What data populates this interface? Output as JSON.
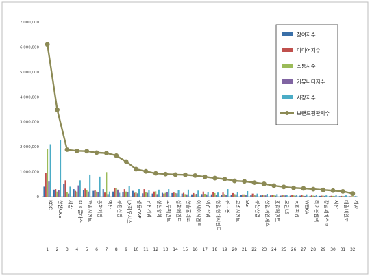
{
  "chart_data": {
    "type": "bar",
    "ylim": [
      0,
      7000000
    ],
    "yticks": [
      "0",
      "1,000,000",
      "2,000,000",
      "3,000,000",
      "4,000,000",
      "5,000,000",
      "6,000,000",
      "7,000,000"
    ],
    "grid": false,
    "legend_position": "right",
    "categories": [
      "KCC",
      "한샘CKE",
      "세방",
      "KCC글라스",
      "한일시멘트",
      "동화기업",
      "벽산",
      "부광산업",
      "LX하우시스",
      "쌍용C&E",
      "유진기업",
      "성신양회",
      "노루페인트",
      "삼화페인트",
      "한솔홈데코",
      "아세아시멘트",
      "이건산업",
      "한일현대시멘트",
      "유니온",
      "고려시멘트",
      "SG",
      "부산산업",
      "삼일씨엔에스",
      "조광페인트",
      "모던LS",
      "동화파워",
      "WEKA",
      "라이온켐텍",
      "강남제비스코",
      "서산",
      "대림비앤코",
      "계양"
    ],
    "index_labels": [
      "1",
      "2",
      "3",
      "4",
      "5",
      "6",
      "7",
      "8",
      "9",
      "10",
      "11",
      "12",
      "13",
      "14",
      "15",
      "16",
      "17",
      "18",
      "19",
      "20",
      "21",
      "22",
      "23",
      "24",
      "25",
      "26",
      "27",
      "28",
      "29",
      "30",
      "31",
      "32"
    ],
    "series": [
      {
        "name": "참여지수",
        "kind": "bar",
        "color": "#3a6fa8",
        "values": [
          400000,
          280000,
          520000,
          300000,
          260000,
          230000,
          300000,
          200000,
          170000,
          230000,
          130000,
          120000,
          150000,
          140000,
          120000,
          90000,
          100000,
          90000,
          80000,
          70000,
          60000,
          60000,
          50000,
          50000,
          40000,
          40000,
          40000,
          30000,
          30000,
          25000,
          20000,
          15000
        ]
      },
      {
        "name": "미디어지수",
        "kind": "bar",
        "color": "#c0504d",
        "values": [
          950000,
          300000,
          650000,
          230000,
          320000,
          250000,
          160000,
          330000,
          300000,
          150000,
          300000,
          200000,
          120000,
          160000,
          150000,
          140000,
          200000,
          180000,
          160000,
          140000,
          90000,
          120000,
          80000,
          70000,
          60000,
          60000,
          55000,
          50000,
          40000,
          35000,
          30000,
          20000
        ]
      },
      {
        "name": "소통지수",
        "kind": "bar",
        "color": "#9bbb59",
        "values": [
          1900000,
          200000,
          180000,
          200000,
          250000,
          200000,
          980000,
          350000,
          200000,
          190000,
          180000,
          210000,
          150000,
          140000,
          100000,
          100000,
          110000,
          140000,
          100000,
          100000,
          90000,
          70000,
          60000,
          60000,
          60000,
          50000,
          40000,
          40000,
          40000,
          30000,
          30000,
          20000
        ]
      },
      {
        "name": "커뮤니티지수",
        "kind": "bar",
        "color": "#8064a2",
        "values": [
          600000,
          250000,
          120000,
          450000,
          200000,
          180000,
          100000,
          280000,
          180000,
          130000,
          150000,
          100000,
          180000,
          130000,
          90000,
          110000,
          90000,
          80000,
          70000,
          90000,
          60000,
          50000,
          50000,
          40000,
          50000,
          40000,
          30000,
          30000,
          30000,
          20000,
          20000,
          15000
        ]
      },
      {
        "name": "시장지수",
        "kind": "bar",
        "color": "#4bacc6",
        "values": [
          2100000,
          2250000,
          400000,
          650000,
          880000,
          800000,
          200000,
          150000,
          420000,
          300000,
          260000,
          280000,
          300000,
          250000,
          280000,
          240000,
          180000,
          160000,
          300000,
          180000,
          220000,
          120000,
          110000,
          100000,
          80000,
          80000,
          90000,
          60000,
          50000,
          60000,
          50000,
          30000
        ]
      },
      {
        "name": "브랜드평판지수",
        "kind": "line",
        "color": "#8c8a55",
        "values": [
          6100000,
          3480000,
          1880000,
          1830000,
          1820000,
          1760000,
          1740000,
          1640000,
          1400000,
          1100000,
          1010000,
          930000,
          900000,
          880000,
          870000,
          840000,
          790000,
          740000,
          700000,
          630000,
          610000,
          560000,
          510000,
          440000,
          390000,
          350000,
          330000,
          300000,
          270000,
          240000,
          210000,
          120000
        ]
      }
    ]
  }
}
